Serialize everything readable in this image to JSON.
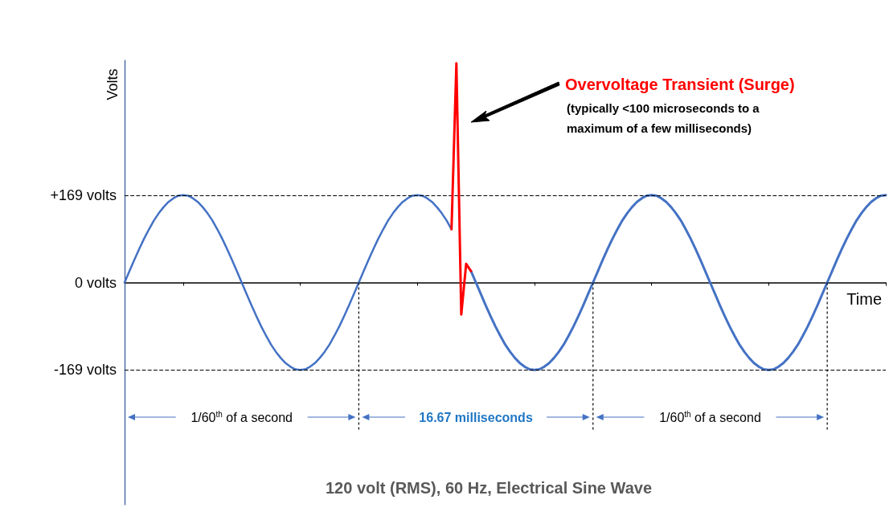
{
  "chart_data": {
    "type": "line",
    "title": "120 volt (RMS), 60 Hz, Electrical Sine Wave",
    "xlabel": "Time",
    "ylabel": "Volts",
    "annotations": [
      "Overvoltage Transient (Surge)",
      "(typically <100 microseconds to a maximum of a few milliseconds)",
      "1/60$^{th}$ of a second",
      "16.67 milliseconds",
      "1/60$^{th}$ of a second"
    ],
    "categories": [
      null,
      null,
      null,
      null,
      null,
      null,
      null,
      null,
      null,
      null,
      null,
      null,
      null,
      null,
      null,
      null,
      null,
      null,
      null,
      null,
      null,
      null,
      null,
      null,
      null,
      null,
      null,
      null,
      null,
      null,
      null,
      null,
      null,
      null,
      null,
      null,
      null,
      null,
      null,
      null,
      null,
      null,
      null,
      null,
      null,
      null,
      null,
      null,
      null,
      null,
      null,
      null,
      null,
      null,
      null,
      null,
      null,
      null,
      null,
      null,
      null,
      null,
      null,
      null,
      null,
      null,
      null,
      null,
      null,
      null,
      null,
      null,
      null,
      null,
      null,
      null,
      null,
      null,
      null,
      null,
      null,
      null,
      null,
      null,
      null,
      null,
      null,
      null,
      null,
      null,
      null,
      null,
      null,
      null,
      null,
      null,
      null,
      null,
      null,
      null,
      null,
      null,
      null,
      null,
      null,
      null,
      null,
      null,
      null,
      null,
      null,
      null,
      null,
      null,
      null,
      null,
      null,
      null,
      null,
      null,
      null,
      null,
      null,
      null,
      null,
      null,
      null,
      null,
      null,
      null,
      null,
      null,
      null,
      null,
      null,
      null,
      null,
      null,
      null,
      null,
      null,
      null,
      null,
      null,
      null,
      null,
      null,
      null,
      null,
      null,
      null,
      null,
      null,
      null,
      null,
      null,
      null
    ],
    "series": [
      {
        "color": "#4472c4",
        "values": [
          0,
          22,
          44,
          65,
          85,
          103,
          120,
          134,
          146,
          156,
          163,
          168,
          169,
          168,
          163,
          156,
          146,
          134,
          120,
          103,
          85,
          65,
          44,
          22,
          0,
          -22,
          -44,
          -65,
          -85,
          -103,
          -120,
          -134,
          -146,
          -156,
          -163,
          -168,
          -169,
          -168,
          -163,
          -156,
          -146,
          -134,
          -120,
          -103,
          -85,
          -65,
          -44,
          -22,
          0,
          22,
          44,
          65,
          85,
          103,
          120,
          134,
          146,
          156,
          163,
          168,
          169,
          168,
          163,
          156,
          146,
          134,
          120,
          103,
          null,
          null,
          null,
          null,
          null,
          null,
          null,
          null,
          null,
          null,
          null,
          null,
          null,
          null,
          null,
          null,
          null,
          null,
          null,
          null,
          null,
          null,
          null,
          null,
          null,
          null,
          null,
          null,
          null,
          null,
          null,
          null,
          null,
          null,
          null,
          null,
          null,
          null,
          null,
          null,
          null,
          null,
          null,
          null,
          null,
          null,
          null,
          null,
          null,
          null,
          null,
          null,
          null,
          null,
          null,
          null,
          null,
          null,
          null,
          null,
          null,
          null,
          null,
          null,
          null,
          null,
          null,
          null,
          null,
          null,
          null,
          null,
          null,
          null,
          null,
          null,
          null,
          null,
          null,
          null,
          null,
          null,
          null,
          null,
          null,
          null,
          null,
          null,
          null
        ]
      },
      {
        "color": "#4472c4",
        "values": [
          null,
          null,
          null,
          null,
          null,
          null,
          null,
          null,
          null,
          null,
          null,
          null,
          null,
          null,
          null,
          null,
          null,
          null,
          null,
          null,
          null,
          null,
          null,
          null,
          null,
          null,
          null,
          null,
          null,
          null,
          null,
          null,
          null,
          null,
          null,
          null,
          null,
          null,
          null,
          null,
          null,
          null,
          null,
          null,
          null,
          null,
          null,
          null,
          null,
          null,
          null,
          null,
          null,
          null,
          null,
          null,
          null,
          null,
          null,
          null,
          null,
          null,
          null,
          null,
          null,
          null,
          null,
          null,
          null,
          null,
          null,
          22,
          0,
          -22,
          -44,
          -65,
          -85,
          -103,
          -120,
          -134,
          -146,
          -156,
          -163,
          -168,
          -169,
          -168,
          -163,
          -156,
          -146,
          -134,
          -120,
          -103,
          -85,
          -65,
          -44,
          -22,
          0,
          22,
          44,
          65,
          85,
          103,
          120,
          134,
          146,
          156,
          163,
          168,
          169,
          168,
          163,
          156,
          146,
          134,
          120,
          103,
          85,
          65,
          44,
          22,
          0,
          -22,
          -44,
          -65,
          -85,
          -103,
          -120,
          -134,
          -146,
          -156,
          -163,
          -168,
          -169,
          -168,
          -163,
          -156,
          -146,
          -134,
          -120,
          -103,
          -85,
          -65,
          -44,
          -22,
          0,
          22,
          44,
          65,
          85,
          103,
          120,
          134,
          146,
          156,
          163,
          168,
          169
        ]
      },
      {
        "color": "#ff0000",
        "values": [
          null,
          null,
          null,
          null,
          null,
          null,
          null,
          null,
          null,
          null,
          null,
          null,
          null,
          null,
          null,
          null,
          null,
          null,
          null,
          null,
          null,
          null,
          null,
          null,
          null,
          null,
          null,
          null,
          null,
          null,
          null,
          null,
          null,
          null,
          null,
          null,
          null,
          null,
          null,
          null,
          null,
          null,
          null,
          null,
          null,
          null,
          null,
          null,
          null,
          null,
          null,
          null,
          null,
          null,
          null,
          null,
          null,
          null,
          null,
          null,
          null,
          null,
          null,
          null,
          null,
          null,
          null,
          103,
          424,
          -62,
          36,
          22,
          null,
          null,
          null,
          null,
          null,
          null,
          null,
          null,
          null,
          null,
          null,
          null,
          null,
          null,
          null,
          null,
          null,
          null,
          null,
          null,
          null,
          null,
          null,
          null,
          null,
          null,
          null,
          null,
          null,
          null,
          null,
          null,
          null,
          null,
          null,
          null,
          null,
          null,
          null,
          null,
          null,
          null,
          null,
          null,
          null,
          null,
          null,
          null,
          null,
          null,
          null,
          null,
          null,
          null,
          null,
          null,
          null,
          null,
          null,
          null,
          null,
          null,
          null,
          null,
          null,
          null,
          null,
          null,
          null,
          null,
          null,
          null,
          null,
          null,
          null,
          null,
          null,
          null,
          null,
          null,
          null,
          null,
          null,
          null,
          null
        ]
      }
    ],
    "ylim": [
      -430,
      430
    ],
    "yticks": [
      {
        "value": -169,
        "label": "-169 volts"
      },
      {
        "value": 0,
        "label": "0 volts"
      },
      {
        "value": 169,
        "label": "+169 volts"
      }
    ],
    "ref_lines": [
      {
        "axis": "y",
        "value": 169,
        "color": "#000000",
        "line_style": "dashed"
      },
      {
        "axis": "y",
        "value": -169,
        "color": "#000000",
        "line_style": "dashed"
      }
    ],
    "grid": false,
    "line_style": "solid",
    "tick_labels": "y"
  }
}
